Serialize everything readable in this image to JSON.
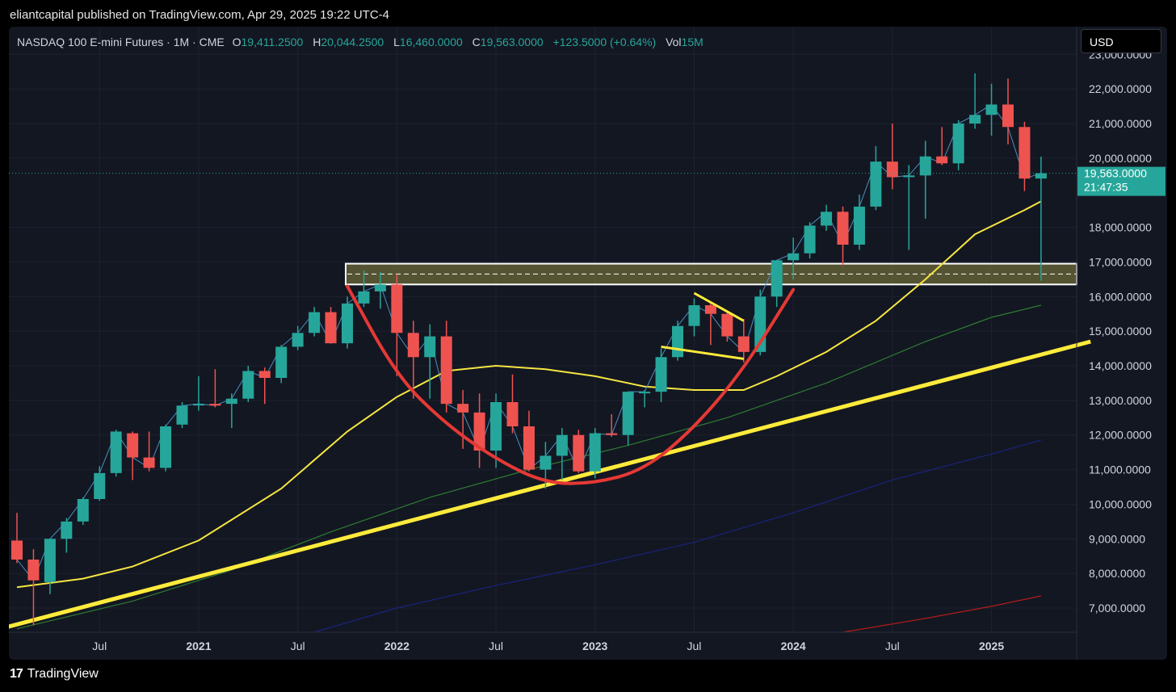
{
  "header": {
    "publish_line": "eliantcapital published on TradingView.com, Apr 29, 2025 19:22 UTC-4"
  },
  "legend": {
    "symbol": "NASDAQ 100 E-mini Futures · 1M · CME",
    "o_label": "O",
    "o_value": "19,411.2500",
    "h_label": "H",
    "h_value": "20,044.2500",
    "l_label": "L",
    "l_value": "16,460.0000",
    "c_label": "C",
    "c_value": "19,563.0000",
    "change": "+123.5000 (+0.64%)",
    "vol_label": "Vol",
    "vol_value": "15M"
  },
  "currency_button": "USD",
  "price_tag": {
    "price": "19,563.0000",
    "countdown": "21:47:35"
  },
  "footer": {
    "logo_mark": "17",
    "brand": "TradingView"
  },
  "colors": {
    "background": "#131722",
    "up": "#26a69a",
    "down": "#ef5350",
    "ma_yellow": "#f5e642",
    "trendline": "#ffeb3b",
    "cup": "#e53935",
    "ma_green": "#2e7d32",
    "ma_blue": "#1a237e",
    "ma_red": "#b71c1c"
  },
  "chart_data": {
    "type": "candlestick",
    "title": "NASDAQ 100 E-mini Futures · 1M · CME",
    "interval": "1M",
    "yaxis_position": "right",
    "ylim": [
      6300,
      23800
    ],
    "y_ticks": [
      {
        "value": 23000,
        "label": "23,000.0000"
      },
      {
        "value": 22000,
        "label": "22,000.0000"
      },
      {
        "value": 21000,
        "label": "21,000.0000"
      },
      {
        "value": 20000,
        "label": "20,000.0000"
      },
      {
        "value": 18000,
        "label": "18,000.0000"
      },
      {
        "value": 17000,
        "label": "17,000.0000"
      },
      {
        "value": 16000,
        "label": "16,000.0000"
      },
      {
        "value": 15000,
        "label": "15,000.0000"
      },
      {
        "value": 14000,
        "label": "14,000.0000"
      },
      {
        "value": 13000,
        "label": "13,000.0000"
      },
      {
        "value": 12000,
        "label": "12,000.0000"
      },
      {
        "value": 11000,
        "label": "11,000.0000"
      },
      {
        "value": 10000,
        "label": "10,000.0000"
      },
      {
        "value": 9000,
        "label": "9,000.0000"
      },
      {
        "value": 8000,
        "label": "8,000.0000"
      },
      {
        "value": 7000,
        "label": "7,000.0000"
      }
    ],
    "x_ticks": [
      {
        "date": "2020-07",
        "label": "Jul",
        "bold": false
      },
      {
        "date": "2021-01",
        "label": "2021",
        "bold": true
      },
      {
        "date": "2021-07",
        "label": "Jul",
        "bold": false
      },
      {
        "date": "2022-01",
        "label": "2022",
        "bold": true
      },
      {
        "date": "2022-07",
        "label": "Jul",
        "bold": false
      },
      {
        "date": "2023-01",
        "label": "2023",
        "bold": true
      },
      {
        "date": "2023-07",
        "label": "Jul",
        "bold": false
      },
      {
        "date": "2024-01",
        "label": "2024",
        "bold": true
      },
      {
        "date": "2024-07",
        "label": "Jul",
        "bold": false
      },
      {
        "date": "2025-01",
        "label": "2025",
        "bold": true
      }
    ],
    "first_month": "2020-02",
    "candles": [
      {
        "date": "2020-02",
        "o": 8950,
        "h": 9750,
        "l": 8300,
        "c": 8400
      },
      {
        "date": "2020-03",
        "o": 8400,
        "h": 8700,
        "l": 6500,
        "c": 7800
      },
      {
        "date": "2020-04",
        "o": 7750,
        "h": 9000,
        "l": 7400,
        "c": 9000
      },
      {
        "date": "2020-05",
        "o": 9000,
        "h": 9600,
        "l": 8600,
        "c": 9500
      },
      {
        "date": "2020-06",
        "o": 9500,
        "h": 10200,
        "l": 9400,
        "c": 10150
      },
      {
        "date": "2020-07",
        "o": 10150,
        "h": 11100,
        "l": 10100,
        "c": 10900
      },
      {
        "date": "2020-08",
        "o": 10900,
        "h": 12150,
        "l": 10800,
        "c": 12100
      },
      {
        "date": "2020-09",
        "o": 12050,
        "h": 12100,
        "l": 10700,
        "c": 11350
      },
      {
        "date": "2020-10",
        "o": 11350,
        "h": 12100,
        "l": 10950,
        "c": 11050
      },
      {
        "date": "2020-11",
        "o": 11050,
        "h": 12300,
        "l": 10950,
        "c": 12250
      },
      {
        "date": "2020-12",
        "o": 12300,
        "h": 12950,
        "l": 12200,
        "c": 12850
      },
      {
        "date": "2021-01",
        "o": 12900,
        "h": 13700,
        "l": 12700,
        "c": 12900
      },
      {
        "date": "2021-02",
        "o": 12900,
        "h": 13900,
        "l": 12800,
        "c": 12850
      },
      {
        "date": "2021-03",
        "o": 12900,
        "h": 13200,
        "l": 12200,
        "c": 13050
      },
      {
        "date": "2021-04",
        "o": 13050,
        "h": 14000,
        "l": 12950,
        "c": 13850
      },
      {
        "date": "2021-05",
        "o": 13850,
        "h": 13950,
        "l": 12900,
        "c": 13650
      },
      {
        "date": "2021-06",
        "o": 13650,
        "h": 14600,
        "l": 13500,
        "c": 14550
      },
      {
        "date": "2021-07",
        "o": 14550,
        "h": 15150,
        "l": 14450,
        "c": 14950
      },
      {
        "date": "2021-08",
        "o": 14950,
        "h": 15700,
        "l": 14850,
        "c": 15550
      },
      {
        "date": "2021-09",
        "o": 15550,
        "h": 15700,
        "l": 14700,
        "c": 14650
      },
      {
        "date": "2021-10",
        "o": 14650,
        "h": 16000,
        "l": 14500,
        "c": 15800
      },
      {
        "date": "2021-11",
        "o": 15800,
        "h": 16750,
        "l": 15700,
        "c": 16150
      },
      {
        "date": "2021-12",
        "o": 16150,
        "h": 16700,
        "l": 15650,
        "c": 16350
      },
      {
        "date": "2022-01",
        "o": 16350,
        "h": 16650,
        "l": 13700,
        "c": 14950
      },
      {
        "date": "2022-02",
        "o": 14950,
        "h": 15300,
        "l": 13050,
        "c": 14250
      },
      {
        "date": "2022-03",
        "o": 14250,
        "h": 15200,
        "l": 13050,
        "c": 14850
      },
      {
        "date": "2022-04",
        "o": 14850,
        "h": 15300,
        "l": 12650,
        "c": 12900
      },
      {
        "date": "2022-05",
        "o": 12900,
        "h": 13300,
        "l": 11600,
        "c": 12650
      },
      {
        "date": "2022-06",
        "o": 12650,
        "h": 13200,
        "l": 11050,
        "c": 11550
      },
      {
        "date": "2022-07",
        "o": 11550,
        "h": 13200,
        "l": 11050,
        "c": 12950
      },
      {
        "date": "2022-08",
        "o": 12950,
        "h": 13750,
        "l": 12050,
        "c": 12250
      },
      {
        "date": "2022-09",
        "o": 12250,
        "h": 12700,
        "l": 10950,
        "c": 11000
      },
      {
        "date": "2022-10",
        "o": 11000,
        "h": 11800,
        "l": 10450,
        "c": 11400
      },
      {
        "date": "2022-11",
        "o": 11400,
        "h": 12200,
        "l": 10700,
        "c": 12000
      },
      {
        "date": "2022-12",
        "o": 12000,
        "h": 12150,
        "l": 10900,
        "c": 10950
      },
      {
        "date": "2023-01",
        "o": 10950,
        "h": 12200,
        "l": 10750,
        "c": 12050
      },
      {
        "date": "2023-02",
        "o": 12050,
        "h": 12600,
        "l": 11950,
        "c": 12000
      },
      {
        "date": "2023-03",
        "o": 12000,
        "h": 13250,
        "l": 11700,
        "c": 13250
      },
      {
        "date": "2023-04",
        "o": 13250,
        "h": 13300,
        "l": 12800,
        "c": 13250
      },
      {
        "date": "2023-05",
        "o": 13250,
        "h": 14500,
        "l": 12950,
        "c": 14250
      },
      {
        "date": "2023-06",
        "o": 14250,
        "h": 15300,
        "l": 14150,
        "c": 15150
      },
      {
        "date": "2023-07",
        "o": 15150,
        "h": 15950,
        "l": 14850,
        "c": 15750
      },
      {
        "date": "2023-08",
        "o": 15750,
        "h": 15800,
        "l": 14600,
        "c": 15500
      },
      {
        "date": "2023-09",
        "o": 15500,
        "h": 15600,
        "l": 14700,
        "c": 14850
      },
      {
        "date": "2023-10",
        "o": 14850,
        "h": 15350,
        "l": 14100,
        "c": 14400
      },
      {
        "date": "2023-11",
        "o": 14400,
        "h": 16200,
        "l": 14300,
        "c": 16000
      },
      {
        "date": "2023-12",
        "o": 16000,
        "h": 17050,
        "l": 15700,
        "c": 17050
      },
      {
        "date": "2024-01",
        "o": 17050,
        "h": 17700,
        "l": 16500,
        "c": 17250
      },
      {
        "date": "2024-02",
        "o": 17250,
        "h": 18150,
        "l": 17100,
        "c": 18050
      },
      {
        "date": "2024-03",
        "o": 18050,
        "h": 18650,
        "l": 17900,
        "c": 18450
      },
      {
        "date": "2024-04",
        "o": 18450,
        "h": 18600,
        "l": 16900,
        "c": 17500
      },
      {
        "date": "2024-05",
        "o": 17500,
        "h": 18950,
        "l": 17350,
        "c": 18600
      },
      {
        "date": "2024-06",
        "o": 18600,
        "h": 20350,
        "l": 18500,
        "c": 19900
      },
      {
        "date": "2024-07",
        "o": 19900,
        "h": 21000,
        "l": 19100,
        "c": 19450
      },
      {
        "date": "2024-08",
        "o": 19450,
        "h": 19800,
        "l": 17350,
        "c": 19500
      },
      {
        "date": "2024-09",
        "o": 19500,
        "h": 20500,
        "l": 18250,
        "c": 20050
      },
      {
        "date": "2024-10",
        "o": 20050,
        "h": 20900,
        "l": 19800,
        "c": 19850
      },
      {
        "date": "2024-11",
        "o": 19850,
        "h": 21100,
        "l": 19650,
        "c": 21000
      },
      {
        "date": "2024-12",
        "o": 21000,
        "h": 22450,
        "l": 20850,
        "c": 21250
      },
      {
        "date": "2025-01",
        "o": 21250,
        "h": 22150,
        "l": 20650,
        "c": 21550
      },
      {
        "date": "2025-02",
        "o": 21550,
        "h": 22300,
        "l": 20400,
        "c": 20900
      },
      {
        "date": "2025-03",
        "o": 20900,
        "h": 21050,
        "l": 19050,
        "c": 19411.25
      },
      {
        "date": "2025-04",
        "o": 19411.25,
        "h": 20044.25,
        "l": 16460,
        "c": 19563
      }
    ],
    "moving_averages": [
      {
        "color": "#f5e642",
        "points": [
          [
            "2020-02",
            7600
          ],
          [
            "2020-06",
            7850
          ],
          [
            "2020-09",
            8200
          ],
          [
            "2021-01",
            8950
          ],
          [
            "2021-06",
            10450
          ],
          [
            "2021-10",
            12100
          ],
          [
            "2022-01",
            13100
          ],
          [
            "2022-04",
            13850
          ],
          [
            "2022-07",
            14000
          ],
          [
            "2022-10",
            13900
          ],
          [
            "2023-01",
            13700
          ],
          [
            "2023-04",
            13400
          ],
          [
            "2023-07",
            13300
          ],
          [
            "2023-10",
            13300
          ],
          [
            "2023-12",
            13700
          ],
          [
            "2024-03",
            14400
          ],
          [
            "2024-06",
            15300
          ],
          [
            "2024-09",
            16500
          ],
          [
            "2024-12",
            17800
          ],
          [
            "2025-03",
            18500
          ],
          [
            "2025-04",
            18750
          ]
        ]
      },
      {
        "color": "#2e7d32",
        "points": [
          [
            "2020-02",
            6400
          ],
          [
            "2020-09",
            7200
          ],
          [
            "2021-03",
            8100
          ],
          [
            "2021-09",
            9200
          ],
          [
            "2022-03",
            10200
          ],
          [
            "2022-09",
            11000
          ],
          [
            "2023-03",
            11700
          ],
          [
            "2023-09",
            12500
          ],
          [
            "2024-03",
            13500
          ],
          [
            "2024-09",
            14700
          ],
          [
            "2025-01",
            15400
          ],
          [
            "2025-04",
            15750
          ]
        ]
      },
      {
        "color": "#1a237e",
        "points": [
          [
            "2021-08",
            6300
          ],
          [
            "2022-01",
            7000
          ],
          [
            "2022-07",
            7650
          ],
          [
            "2023-01",
            8250
          ],
          [
            "2023-07",
            8900
          ],
          [
            "2024-01",
            9750
          ],
          [
            "2024-07",
            10700
          ],
          [
            "2025-01",
            11450
          ],
          [
            "2025-04",
            11850
          ]
        ]
      },
      {
        "color": "#b71c1c",
        "points": [
          [
            "2024-04",
            6300
          ],
          [
            "2024-09",
            6700
          ],
          [
            "2025-01",
            7050
          ],
          [
            "2025-04",
            7350
          ]
        ]
      }
    ],
    "trendline": {
      "color": "#ffeb3b",
      "from": [
        "2020-01",
        6400
      ],
      "to": [
        "2025-07",
        14700
      ]
    },
    "support_zone": {
      "from": "2021-10",
      "top": 16950,
      "bottom": 16350,
      "mid": 16650,
      "fill": "#6b6a3a",
      "border": "#ffffff"
    },
    "cup_arc": {
      "color": "#e53935",
      "points": [
        [
          "2021-10",
          16300
        ],
        [
          "2022-01",
          13700
        ],
        [
          "2022-04",
          12300
        ],
        [
          "2022-07",
          11300
        ],
        [
          "2022-10",
          10600
        ],
        [
          "2023-01",
          10600
        ],
        [
          "2023-04",
          11000
        ],
        [
          "2023-07",
          12200
        ],
        [
          "2023-10",
          13900
        ],
        [
          "2024-01",
          16200
        ]
      ]
    },
    "flag_lines": [
      {
        "color": "#ffeb3b",
        "from": [
          "2023-07",
          16100
        ],
        "to": [
          "2023-10",
          15300
        ]
      },
      {
        "color": "#ffeb3b",
        "from": [
          "2023-05",
          14550
        ],
        "to": [
          "2023-10",
          14200
        ]
      }
    ],
    "last_price": 19563
  }
}
